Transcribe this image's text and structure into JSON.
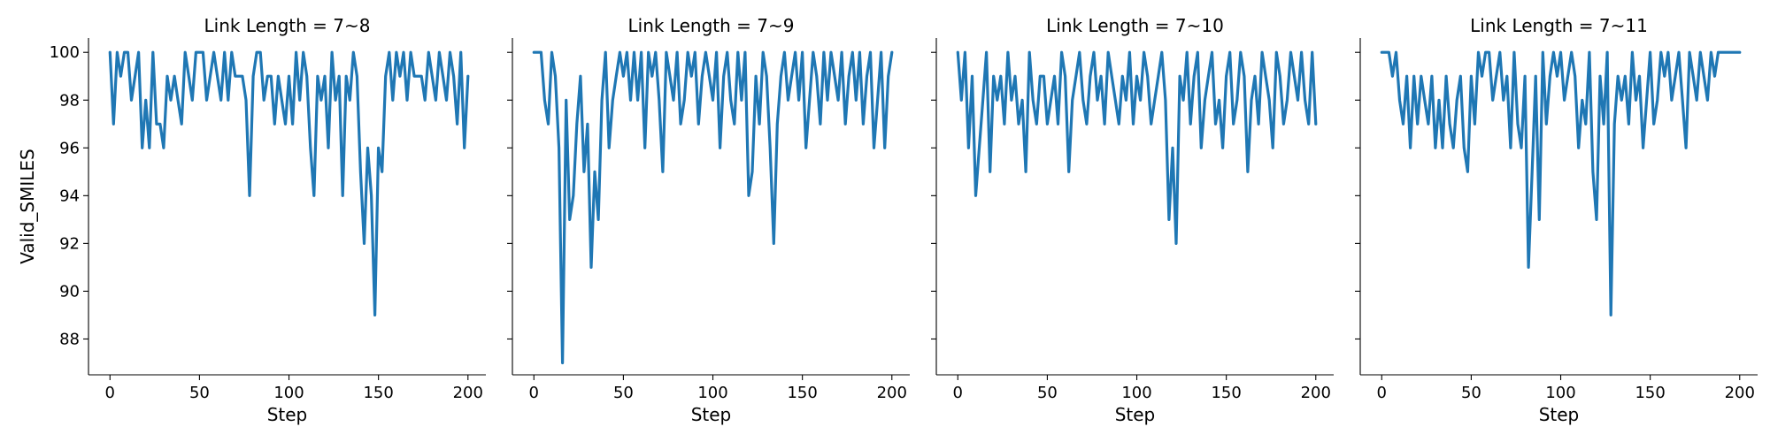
{
  "chart_data": {
    "type": "line",
    "ylabel": "Valid_SMILES",
    "xlabel": "Step",
    "xlim": [
      -12,
      210
    ],
    "ylim": [
      86.5,
      100.6
    ],
    "xticks": [
      0,
      50,
      100,
      150,
      200
    ],
    "yticks": [
      88,
      90,
      92,
      94,
      96,
      98,
      100
    ],
    "grid": false,
    "line_color": "#1f77b4",
    "panels": [
      {
        "title": "Link Length = 7~8",
        "x": [
          0,
          2,
          4,
          6,
          8,
          10,
          12,
          14,
          16,
          18,
          20,
          22,
          24,
          26,
          28,
          30,
          32,
          34,
          36,
          38,
          40,
          42,
          44,
          46,
          48,
          50,
          52,
          54,
          56,
          58,
          60,
          62,
          64,
          66,
          68,
          70,
          72,
          74,
          76,
          78,
          80,
          82,
          84,
          86,
          88,
          90,
          92,
          94,
          96,
          98,
          100,
          102,
          104,
          106,
          108,
          110,
          112,
          114,
          116,
          118,
          120,
          122,
          124,
          126,
          128,
          130,
          132,
          134,
          136,
          138,
          140,
          142,
          144,
          146,
          148,
          150,
          152,
          154,
          156,
          158,
          160,
          162,
          164,
          166,
          168,
          170,
          172,
          174,
          176,
          178,
          180,
          182,
          184,
          186,
          188,
          190,
          192,
          194,
          196,
          198,
          200
        ],
        "y": [
          100,
          97,
          100,
          99,
          100,
          100,
          98,
          99,
          100,
          96,
          98,
          96,
          100,
          97,
          97,
          96,
          99,
          98,
          99,
          98,
          97,
          100,
          99,
          98,
          100,
          100,
          100,
          98,
          99,
          100,
          99,
          98,
          100,
          98,
          100,
          99,
          99,
          99,
          98,
          94,
          99,
          100,
          100,
          98,
          99,
          99,
          97,
          99,
          98,
          97,
          99,
          97,
          100,
          98,
          100,
          99,
          96,
          94,
          99,
          98,
          99,
          96,
          100,
          98,
          99,
          94,
          99,
          98,
          100,
          99,
          95,
          92,
          96,
          94,
          89,
          96,
          95,
          99,
          100,
          98,
          100,
          99,
          100,
          98,
          100,
          99,
          99,
          99,
          98,
          100,
          99,
          98,
          100,
          99,
          98,
          100,
          99,
          97,
          100,
          96,
          99
        ]
      },
      {
        "title": "Link Length = 7~9",
        "x": [
          0,
          2,
          4,
          6,
          8,
          10,
          12,
          14,
          16,
          18,
          20,
          22,
          24,
          26,
          28,
          30,
          32,
          34,
          36,
          38,
          40,
          42,
          44,
          46,
          48,
          50,
          52,
          54,
          56,
          58,
          60,
          62,
          64,
          66,
          68,
          70,
          72,
          74,
          76,
          78,
          80,
          82,
          84,
          86,
          88,
          90,
          92,
          94,
          96,
          98,
          100,
          102,
          104,
          106,
          108,
          110,
          112,
          114,
          116,
          118,
          120,
          122,
          124,
          126,
          128,
          130,
          132,
          134,
          136,
          138,
          140,
          142,
          144,
          146,
          148,
          150,
          152,
          154,
          156,
          158,
          160,
          162,
          164,
          166,
          168,
          170,
          172,
          174,
          176,
          178,
          180,
          182,
          184,
          186,
          188,
          190,
          192,
          194,
          196,
          198,
          200
        ],
        "y": [
          100,
          100,
          100,
          98,
          97,
          100,
          99,
          96,
          87,
          98,
          93,
          94,
          97,
          99,
          95,
          97,
          91,
          95,
          93,
          98,
          100,
          96,
          98,
          99,
          100,
          99,
          100,
          98,
          100,
          98,
          100,
          96,
          100,
          99,
          100,
          98,
          95,
          100,
          99,
          98,
          100,
          97,
          98,
          100,
          99,
          100,
          97,
          99,
          100,
          99,
          98,
          100,
          96,
          99,
          100,
          98,
          97,
          100,
          98,
          100,
          94,
          95,
          99,
          97,
          100,
          99,
          96,
          92,
          97,
          99,
          100,
          98,
          99,
          100,
          98,
          100,
          96,
          98,
          100,
          99,
          97,
          100,
          98,
          100,
          99,
          98,
          100,
          97,
          99,
          100,
          98,
          100,
          97,
          99,
          100,
          96,
          98,
          100,
          96,
          99,
          100
        ]
      },
      {
        "title": "Link Length = 7~10",
        "x": [
          0,
          2,
          4,
          6,
          8,
          10,
          12,
          14,
          16,
          18,
          20,
          22,
          24,
          26,
          28,
          30,
          32,
          34,
          36,
          38,
          40,
          42,
          44,
          46,
          48,
          50,
          52,
          54,
          56,
          58,
          60,
          62,
          64,
          66,
          68,
          70,
          72,
          74,
          76,
          78,
          80,
          82,
          84,
          86,
          88,
          90,
          92,
          94,
          96,
          98,
          100,
          102,
          104,
          106,
          108,
          110,
          112,
          114,
          116,
          118,
          120,
          122,
          124,
          126,
          128,
          130,
          132,
          134,
          136,
          138,
          140,
          142,
          144,
          146,
          148,
          150,
          152,
          154,
          156,
          158,
          160,
          162,
          164,
          166,
          168,
          170,
          172,
          174,
          176,
          178,
          180,
          182,
          184,
          186,
          188,
          190,
          192,
          194,
          196,
          198,
          200
        ],
        "y": [
          100,
          98,
          100,
          96,
          99,
          94,
          96,
          98,
          100,
          95,
          99,
          98,
          99,
          97,
          100,
          98,
          99,
          97,
          98,
          95,
          100,
          98,
          97,
          99,
          99,
          97,
          98,
          99,
          97,
          100,
          99,
          95,
          98,
          99,
          100,
          98,
          97,
          99,
          100,
          98,
          99,
          97,
          100,
          99,
          98,
          97,
          99,
          98,
          100,
          97,
          99,
          98,
          100,
          99,
          97,
          98,
          99,
          100,
          98,
          93,
          96,
          92,
          99,
          98,
          100,
          97,
          99,
          100,
          96,
          98,
          99,
          100,
          97,
          98,
          96,
          99,
          100,
          97,
          98,
          100,
          99,
          95,
          98,
          99,
          97,
          100,
          99,
          98,
          96,
          100,
          99,
          97,
          98,
          100,
          99,
          98,
          100,
          98,
          97,
          100,
          97
        ]
      },
      {
        "title": "Link Length = 7~11",
        "x": [
          0,
          2,
          4,
          6,
          8,
          10,
          12,
          14,
          16,
          18,
          20,
          22,
          24,
          26,
          28,
          30,
          32,
          34,
          36,
          38,
          40,
          42,
          44,
          46,
          48,
          50,
          52,
          54,
          56,
          58,
          60,
          62,
          64,
          66,
          68,
          70,
          72,
          74,
          76,
          78,
          80,
          82,
          84,
          86,
          88,
          90,
          92,
          94,
          96,
          98,
          100,
          102,
          104,
          106,
          108,
          110,
          112,
          114,
          116,
          118,
          120,
          122,
          124,
          126,
          128,
          130,
          132,
          134,
          136,
          138,
          140,
          142,
          144,
          146,
          148,
          150,
          152,
          154,
          156,
          158,
          160,
          162,
          164,
          166,
          168,
          170,
          172,
          174,
          176,
          178,
          180,
          182,
          184,
          186,
          188,
          190,
          192,
          194,
          196,
          198,
          200
        ],
        "y": [
          100,
          100,
          100,
          99,
          100,
          98,
          97,
          99,
          96,
          99,
          97,
          99,
          98,
          97,
          99,
          96,
          98,
          96,
          99,
          97,
          96,
          98,
          99,
          96,
          95,
          99,
          97,
          100,
          99,
          100,
          100,
          98,
          99,
          100,
          98,
          99,
          96,
          100,
          97,
          96,
          99,
          91,
          95,
          99,
          93,
          100,
          97,
          99,
          100,
          99,
          100,
          98,
          99,
          100,
          99,
          96,
          98,
          97,
          100,
          95,
          93,
          99,
          97,
          100,
          89,
          97,
          99,
          98,
          99,
          97,
          100,
          98,
          99,
          96,
          98,
          100,
          97,
          98,
          100,
          99,
          100,
          98,
          99,
          100,
          98,
          96,
          100,
          99,
          98,
          100,
          99,
          98,
          100,
          99,
          100,
          100,
          100,
          100,
          100,
          100,
          100
        ]
      }
    ]
  }
}
